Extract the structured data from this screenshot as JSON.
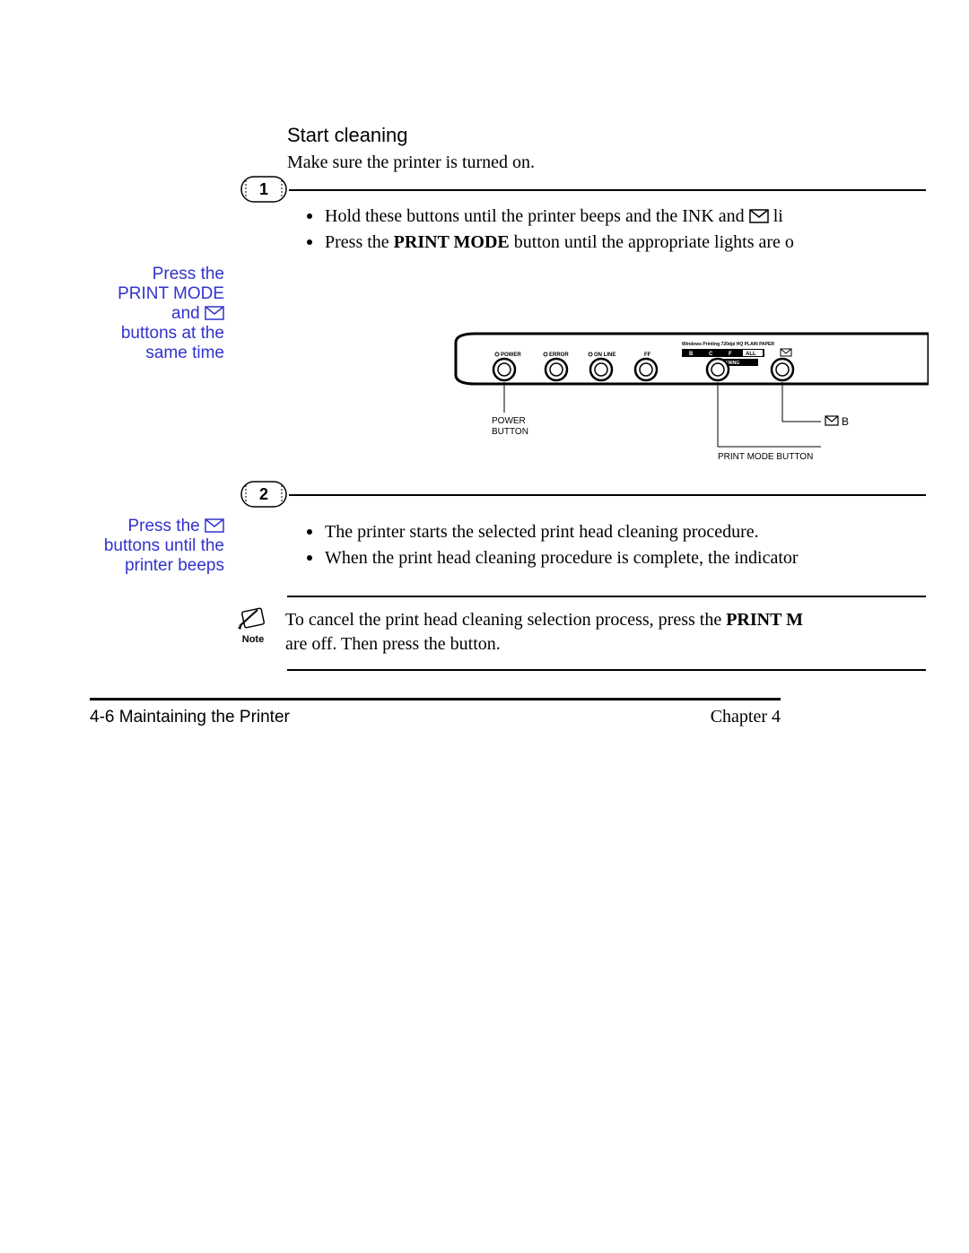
{
  "colors": {
    "accent": "#3232cc",
    "text": "#000000",
    "bg": "#ffffff"
  },
  "typography": {
    "heading_family": "Verdana",
    "heading_size_pt": 17,
    "body_family": "Times New Roman",
    "body_size_pt": 15,
    "side_label_family": "Verdana",
    "side_label_size_pt": 14
  },
  "heading": "Start cleaning",
  "intro": "Make sure the printer is turned on.",
  "steps": {
    "1": {
      "badge": "1",
      "side_label_lines": [
        "Press the",
        "PRINT MODE",
        "and",
        "buttons at the",
        "same time"
      ],
      "side_label_icon_after_line_index": 2,
      "bullets_html": [
        "Hold these buttons until the printer beeps and the INK and <svg class=\"envicon\" width=\"22\" height=\"16\"><rect x=\"1\" y=\"1\" width=\"20\" height=\"14\" fill=\"none\" stroke=\"#000\" stroke-width=\"1.5\"/><polyline points=\"1,1 11,9 21,1\" fill=\"none\" stroke=\"#000\" stroke-width=\"1.5\"/></svg> li",
        "Press the <span class=\"bold\">PRINT MODE</span> button until the appropriate lights are o"
      ]
    },
    "2": {
      "badge": "2",
      "side_label_lines": [
        "Press the",
        "buttons until the",
        "printer beeps"
      ],
      "side_label_icon_after_line_index": 0,
      "bullets_html": [
        "The printer starts the selected print head cleaning procedure.",
        "When the print head cleaning procedure is complete, the indicator"
      ]
    }
  },
  "note": {
    "label": "Note",
    "text_lines": [
      "To cancel the print head cleaning selection process, press the <span class=\"bold\">PRINT M</span>",
      "are off. Then press the button."
    ]
  },
  "panel_figure": {
    "labels": {
      "power": "POWER",
      "error": "ERROR",
      "online": "ON LINE",
      "ff": "FF",
      "mode_top": "Windows Printing  720dpi  HQ  PLAIN PAPER",
      "mode_bar": [
        "B",
        "C",
        "F",
        "ALL"
      ],
      "cleaning": "CLEANING",
      "power_button": "POWER\nBUTTON",
      "b_label": "B",
      "print_mode_button": "PRINT MODE BUTTON"
    }
  },
  "footer": {
    "page_ref": "4-6",
    "section": "Maintaining the Printer",
    "chapter": "Chapter 4"
  }
}
